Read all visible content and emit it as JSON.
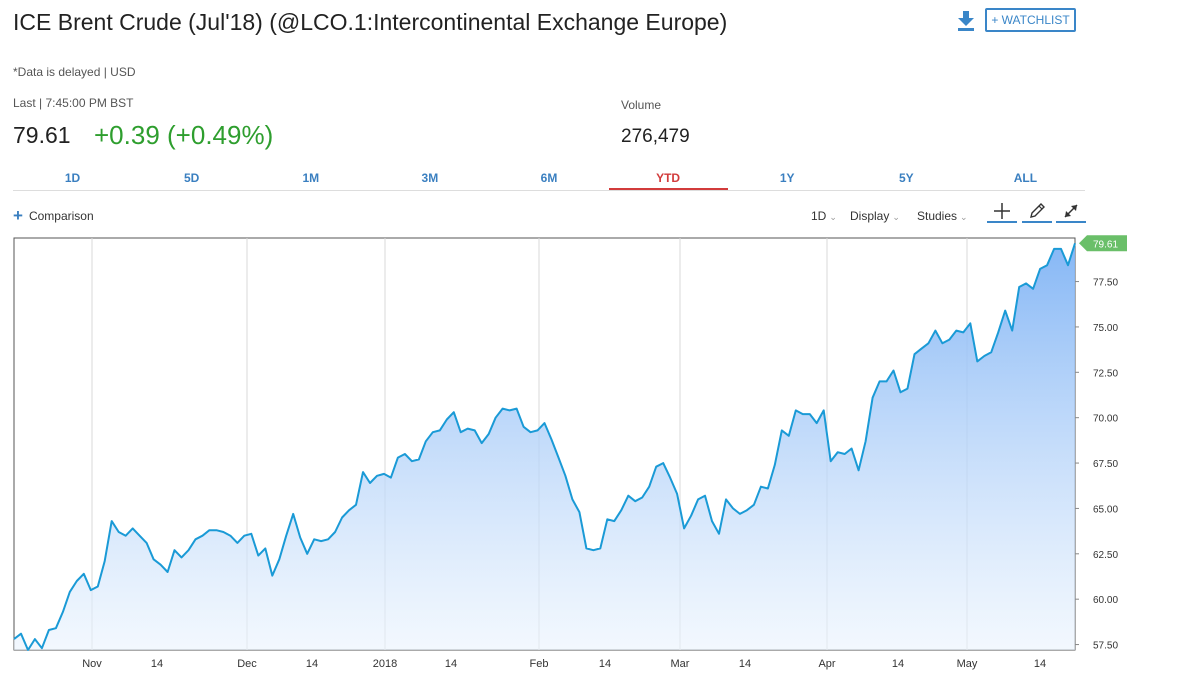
{
  "header": {
    "title": "ICE Brent Crude (Jul'18) (@LCO.1:Intercontinental Exchange Europe)",
    "subtitle": "*Data is delayed | USD",
    "watchlist_label": "+ WATCHLIST",
    "download_icon": "download-icon"
  },
  "quote": {
    "last_label": "Last | 7:45:00 PM BST",
    "last_price": "79.61",
    "change": "+0.39 (+0.49%)",
    "volume_label": "Volume",
    "volume_value": "276,479",
    "change_color": "#2e9e2e"
  },
  "tabs": [
    {
      "label": "1D"
    },
    {
      "label": "5D"
    },
    {
      "label": "1M"
    },
    {
      "label": "3M"
    },
    {
      "label": "6M"
    },
    {
      "label": "YTD",
      "active": true
    },
    {
      "label": "1Y"
    },
    {
      "label": "5Y"
    },
    {
      "label": "ALL"
    }
  ],
  "toolbar": {
    "comparison_label": "Comparison",
    "interval_label": "1D",
    "display_label": "Display",
    "studies_label": "Studies",
    "tools": [
      "crosshair-icon",
      "pencil-icon",
      "expand-icon"
    ]
  },
  "chart_data": {
    "type": "area",
    "x_tick_labels": [
      "Nov",
      "14",
      "Dec",
      "14",
      "2018",
      "14",
      "Feb",
      "14",
      "Mar",
      "14",
      "Apr",
      "14",
      "May",
      "14"
    ],
    "y_ticks": [
      57.5,
      60.0,
      62.5,
      65.0,
      67.5,
      70.0,
      72.5,
      75.0,
      77.5
    ],
    "ylim": [
      57.2,
      79.9
    ],
    "last_value": 79.61,
    "grid": "vertical at month boundaries",
    "line_color": "#1a9ad6",
    "fill_color_top": "#7fb3f5",
    "values": [
      57.8,
      58.1,
      57.2,
      57.8,
      57.3,
      58.3,
      58.4,
      59.3,
      60.4,
      61.0,
      61.4,
      60.5,
      60.7,
      62.1,
      64.3,
      63.7,
      63.5,
      63.9,
      63.5,
      63.1,
      62.2,
      61.9,
      61.5,
      62.7,
      62.3,
      62.7,
      63.3,
      63.5,
      63.8,
      63.8,
      63.7,
      63.5,
      63.1,
      63.5,
      63.6,
      62.4,
      62.8,
      61.3,
      62.2,
      63.5,
      64.7,
      63.4,
      62.5,
      63.3,
      63.2,
      63.3,
      63.7,
      64.5,
      64.9,
      65.2,
      67.0,
      66.4,
      66.8,
      66.9,
      66.7,
      67.8,
      68.0,
      67.6,
      67.7,
      68.7,
      69.2,
      69.3,
      69.9,
      70.3,
      69.2,
      69.4,
      69.3,
      68.6,
      69.1,
      70.0,
      70.5,
      70.4,
      70.5,
      69.5,
      69.2,
      69.3,
      69.7,
      68.8,
      67.8,
      66.8,
      65.5,
      64.8,
      62.8,
      62.7,
      62.8,
      64.4,
      64.3,
      64.9,
      65.7,
      65.4,
      65.6,
      66.2,
      67.3,
      67.5,
      66.7,
      65.8,
      63.9,
      64.6,
      65.5,
      65.7,
      64.3,
      63.6,
      65.5,
      65.0,
      64.7,
      64.9,
      65.2,
      66.2,
      66.1,
      67.4,
      69.3,
      69.0,
      70.4,
      70.2,
      70.2,
      69.7,
      70.4,
      67.6,
      68.1,
      68.0,
      68.3,
      67.1,
      68.7,
      71.1,
      72.0,
      72.0,
      72.6,
      71.4,
      71.6,
      73.5,
      73.8,
      74.1,
      74.8,
      74.1,
      74.3,
      74.8,
      74.7,
      75.2,
      73.1,
      73.4,
      73.6,
      74.7,
      75.9,
      74.8,
      77.2,
      77.4,
      77.1,
      78.2,
      78.4,
      79.3,
      79.3,
      78.4,
      79.61
    ]
  }
}
